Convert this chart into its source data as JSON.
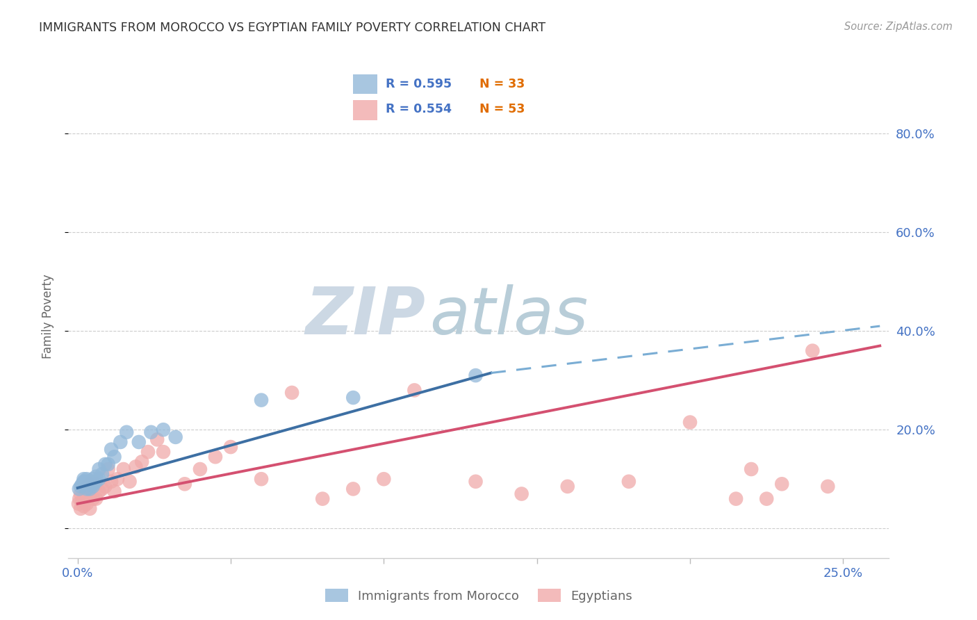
{
  "title": "IMMIGRANTS FROM MOROCCO VS EGYPTIAN FAMILY POVERTY CORRELATION CHART",
  "source": "Source: ZipAtlas.com",
  "ylabel_label": "Family Poverty",
  "x_ticks": [
    0.0,
    0.05,
    0.1,
    0.15,
    0.2,
    0.25
  ],
  "x_tick_labels": [
    "0.0%",
    "",
    "",
    "",
    "",
    "25.0%"
  ],
  "y_ticks_right": [
    0.0,
    0.2,
    0.4,
    0.6,
    0.8
  ],
  "y_tick_labels_right": [
    "",
    "20.0%",
    "40.0%",
    "60.0%",
    "80.0%"
  ],
  "xlim": [
    -0.003,
    0.265
  ],
  "ylim": [
    -0.06,
    0.92
  ],
  "morocco_R": "0.595",
  "morocco_N": "33",
  "egypt_R": "0.554",
  "egypt_N": "53",
  "morocco_color": "#92b8d9",
  "egypt_color": "#f0aaaa",
  "trendline_morocco_solid_color": "#3d6fa3",
  "trendline_morocco_dashed_color": "#7aadd4",
  "trendline_egypt_color": "#d45070",
  "watermark_zip_color": "#c5d3e0",
  "watermark_atlas_color": "#b8ccd8",
  "grid_color": "#cccccc",
  "title_color": "#333333",
  "axis_label_color": "#666666",
  "tick_color_blue": "#4472c4",
  "legend_r_color": "#4472c4",
  "legend_n_color": "#e06c00",
  "morocco_x": [
    0.0005,
    0.001,
    0.0015,
    0.002,
    0.002,
    0.0025,
    0.003,
    0.003,
    0.003,
    0.004,
    0.004,
    0.004,
    0.005,
    0.005,
    0.005,
    0.006,
    0.006,
    0.007,
    0.007,
    0.008,
    0.009,
    0.01,
    0.011,
    0.012,
    0.014,
    0.016,
    0.02,
    0.024,
    0.028,
    0.032,
    0.06,
    0.09,
    0.13
  ],
  "morocco_y": [
    0.08,
    0.085,
    0.09,
    0.095,
    0.1,
    0.095,
    0.08,
    0.09,
    0.1,
    0.08,
    0.09,
    0.095,
    0.085,
    0.09,
    0.1,
    0.095,
    0.105,
    0.1,
    0.12,
    0.11,
    0.13,
    0.13,
    0.16,
    0.145,
    0.175,
    0.195,
    0.175,
    0.195,
    0.2,
    0.185,
    0.26,
    0.265,
    0.31
  ],
  "egypt_x": [
    0.0003,
    0.0006,
    0.001,
    0.001,
    0.0015,
    0.002,
    0.002,
    0.002,
    0.003,
    0.003,
    0.003,
    0.004,
    0.004,
    0.004,
    0.005,
    0.005,
    0.006,
    0.006,
    0.007,
    0.008,
    0.009,
    0.01,
    0.011,
    0.012,
    0.013,
    0.015,
    0.017,
    0.019,
    0.021,
    0.023,
    0.026,
    0.028,
    0.035,
    0.04,
    0.045,
    0.05,
    0.06,
    0.07,
    0.08,
    0.09,
    0.1,
    0.11,
    0.13,
    0.145,
    0.16,
    0.18,
    0.2,
    0.215,
    0.22,
    0.225,
    0.23,
    0.24,
    0.245
  ],
  "egypt_y": [
    0.05,
    0.06,
    0.04,
    0.07,
    0.055,
    0.045,
    0.06,
    0.085,
    0.05,
    0.07,
    0.085,
    0.04,
    0.065,
    0.09,
    0.06,
    0.095,
    0.06,
    0.09,
    0.075,
    0.08,
    0.085,
    0.12,
    0.095,
    0.075,
    0.1,
    0.12,
    0.095,
    0.125,
    0.135,
    0.155,
    0.18,
    0.155,
    0.09,
    0.12,
    0.145,
    0.165,
    0.1,
    0.275,
    0.06,
    0.08,
    0.1,
    0.28,
    0.095,
    0.07,
    0.085,
    0.095,
    0.215,
    0.06,
    0.12,
    0.06,
    0.09,
    0.36,
    0.085
  ],
  "morocco_trend_x0": 0.0,
  "morocco_trend_y0": 0.082,
  "morocco_trend_x1": 0.135,
  "morocco_trend_y1": 0.315,
  "morocco_trend_dashed_x0": 0.135,
  "morocco_trend_dashed_y0": 0.315,
  "morocco_trend_dashed_x1": 0.262,
  "morocco_trend_dashed_y1": 0.41,
  "egypt_trend_x0": 0.0,
  "egypt_trend_y0": 0.05,
  "egypt_trend_x1": 0.262,
  "egypt_trend_y1": 0.37
}
